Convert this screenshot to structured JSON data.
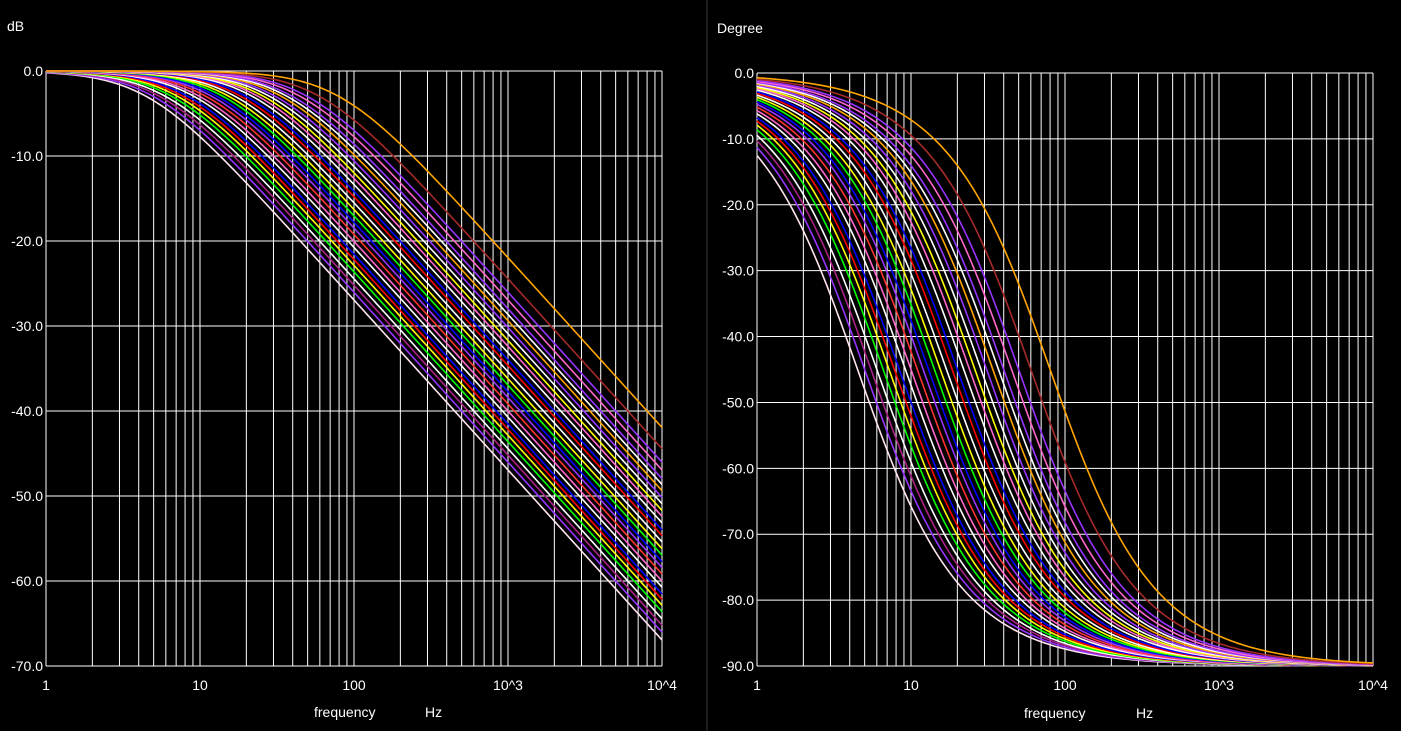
{
  "chart_data": [
    {
      "type": "line",
      "ylabel": "dB",
      "xlabel": "frequency",
      "xunit": "Hz",
      "xscale": "log",
      "xlim": [
        1,
        10000
      ],
      "ylim": [
        -70,
        0
      ],
      "x_tick_labels": [
        "1",
        "10",
        "100",
        "10^3",
        "10^4"
      ],
      "y_tick_labels": [
        "0.0",
        "-10.0",
        "-20.0",
        "-30.0",
        "-40.0",
        "-50.0",
        "-60.0",
        "-70.0"
      ],
      "grid": true,
      "series_kind": "first-order low-pass magnitude |H| = -10·log10(1+(f/fc)^2)",
      "series": [
        {
          "color": "#ffe4f0",
          "cutoff_hz": 4.5
        },
        {
          "color": "#9933ff",
          "cutoff_hz": 5.0
        },
        {
          "color": "#aa2288",
          "cutoff_hz": 5.5
        },
        {
          "color": "#ffffff",
          "cutoff_hz": 6.0
        },
        {
          "color": "#00ff00",
          "cutoff_hz": 6.6
        },
        {
          "color": "#ffff00",
          "cutoff_hz": 7.2
        },
        {
          "color": "#ff0000",
          "cutoff_hz": 7.8
        },
        {
          "color": "#0000ff",
          "cutoff_hz": 8.4
        },
        {
          "color": "#ffffff",
          "cutoff_hz": 9.2
        },
        {
          "color": "#ff66cc",
          "cutoff_hz": 10.0
        },
        {
          "color": "#ff3333",
          "cutoff_hz": 11.0
        },
        {
          "color": "#9933ff",
          "cutoff_hz": 12.0
        },
        {
          "color": "#0000ff",
          "cutoff_hz": 13.0
        },
        {
          "color": "#00ff00",
          "cutoff_hz": 14.2
        },
        {
          "color": "#ffff00",
          "cutoff_hz": 15.5
        },
        {
          "color": "#ffffff",
          "cutoff_hz": 17.0
        },
        {
          "color": "#ff0000",
          "cutoff_hz": 18.5
        },
        {
          "color": "#0000ff",
          "cutoff_hz": 20.0
        },
        {
          "color": "#ffffff",
          "cutoff_hz": 22.0
        },
        {
          "color": "#ff66cc",
          "cutoff_hz": 24.0
        },
        {
          "color": "#ffff00",
          "cutoff_hz": 26.0
        },
        {
          "color": "#ffffff",
          "cutoff_hz": 28.5
        },
        {
          "color": "#9933ff",
          "cutoff_hz": 31.0
        },
        {
          "color": "#ffa500",
          "cutoff_hz": 34.0
        },
        {
          "color": "#ffffff",
          "cutoff_hz": 37.0
        },
        {
          "color": "#9933ff",
          "cutoff_hz": 40.0
        },
        {
          "color": "#ff66cc",
          "cutoff_hz": 45.0
        },
        {
          "color": "#9933ff",
          "cutoff_hz": 50.0
        },
        {
          "color": "#a52a2a",
          "cutoff_hz": 60.0
        },
        {
          "color": "#ffa500",
          "cutoff_hz": 80.0
        }
      ]
    },
    {
      "type": "line",
      "ylabel": "Degree",
      "xlabel": "frequency",
      "xunit": "Hz",
      "xscale": "log",
      "xlim": [
        1,
        10000
      ],
      "ylim": [
        -90,
        0
      ],
      "x_tick_labels": [
        "1",
        "10",
        "100",
        "10^3",
        "10^4"
      ],
      "y_tick_labels": [
        "0.0",
        "-10.0",
        "-20.0",
        "-30.0",
        "-40.0",
        "-50.0",
        "-60.0",
        "-70.0",
        "-80.0",
        "-90.0"
      ],
      "grid": true,
      "series_kind": "first-order low-pass phase = -atan(f/fc) in degrees",
      "series": "same cutoff set and colors as magnitude plot"
    }
  ]
}
